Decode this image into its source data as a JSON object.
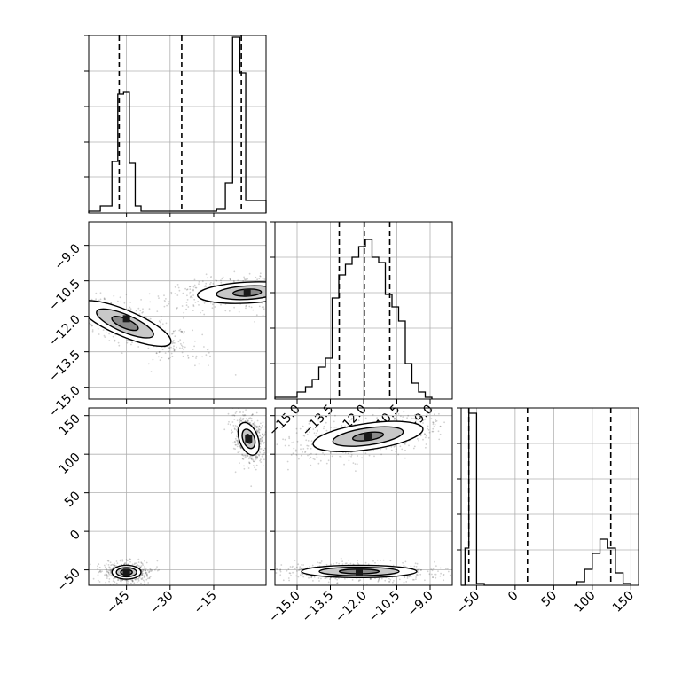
{
  "chart_data": {
    "type": "corner",
    "grid": true,
    "panels": [
      {
        "id": "hist-x",
        "type": "histogram",
        "variable": "x",
        "xlim": [
          -58,
          3
        ],
        "ylim": [
          0,
          1
        ],
        "bin_edges": [
          -58.0,
          -54.0,
          -50.0,
          -48.0,
          -46.0,
          -44.0,
          -42.0,
          -40.0,
          -14.0,
          -11.0,
          -8.5,
          -6.0,
          -4.0,
          -2.0,
          0.5,
          3.0
        ],
        "counts": [
          0.01,
          0.04,
          0.29,
          0.67,
          0.68,
          0.28,
          0.04,
          0.01,
          0.02,
          0.17,
          0.99,
          0.79,
          0.07,
          0.07,
          0.07
        ],
        "quantile_lines": [
          -47.5,
          -26.0,
          -5.5
        ]
      },
      {
        "id": "scatter-x-y",
        "type": "2d-density",
        "variables": [
          "x",
          "y"
        ],
        "xlim": [
          -58,
          3
        ],
        "ylim": [
          -15.5,
          -8.0
        ],
        "y_ticks": [
          -9.0,
          -10.5,
          -12.0,
          -13.5,
          -15.0
        ],
        "y_tick_labels": [
          "−9.0",
          "−10.5",
          "−12.0",
          "−13.5",
          "−15.0"
        ],
        "clusters": [
          {
            "center": [
              -45.5,
              -12.3
            ],
            "contour_levels": [
              [
                4.5,
                2.1,
                -67
              ],
              [
                3.0,
                1.3,
                -67
              ],
              [
                1.6,
                0.6,
                -67
              ]
            ],
            "peak": [
              -45.0,
              -12.1
            ]
          },
          {
            "center": [
              -3.5,
              -11.0
            ],
            "contour_levels": [
              [
                3.6,
                2.1,
                -93
              ],
              [
                2.3,
                1.3,
                -93
              ],
              [
                1.2,
                0.6,
                -93
              ]
            ],
            "peak": [
              -3.5,
              -11.0
            ]
          }
        ]
      },
      {
        "id": "hist-y",
        "type": "histogram",
        "variable": "y",
        "xlim": [
          -16,
          -8.0
        ],
        "ylim": [
          0,
          1
        ],
        "bin_edges": [
          -16.0,
          -15.0,
          -14.62,
          -14.32,
          -14.02,
          -13.72,
          -13.42,
          -13.12,
          -12.82,
          -12.52,
          -12.22,
          -11.92,
          -11.62,
          -11.32,
          -11.02,
          -10.72,
          -10.42,
          -10.12,
          -9.82,
          -9.52,
          -9.22,
          -8.92
        ],
        "counts": [
          0.01,
          0.04,
          0.07,
          0.11,
          0.18,
          0.23,
          0.57,
          0.7,
          0.76,
          0.8,
          0.86,
          0.9,
          0.8,
          0.77,
          0.59,
          0.52,
          0.44,
          0.2,
          0.09,
          0.04,
          0.01
        ],
        "quantile_lines": [
          -13.1,
          -11.97,
          -10.82
        ],
        "x_ticks": [
          -15.0,
          -13.5,
          -12.0,
          -10.5,
          -9.0
        ],
        "x_tick_labels": [
          "−15.0",
          "−13.5",
          "−12.0",
          "−10.5",
          "−9.0"
        ]
      },
      {
        "id": "scatter-x-z",
        "type": "2d-density",
        "variables": [
          "x",
          "z"
        ],
        "xlim": [
          -58,
          3
        ],
        "ylim": [
          -70,
          160
        ],
        "x_ticks": [
          -45,
          -30,
          -15
        ],
        "x_tick_labels": [
          "−45",
          "−30",
          "−15"
        ],
        "y_ticks": [
          150,
          100,
          50,
          0,
          -50
        ],
        "y_tick_labels": [
          "150",
          "100",
          "50",
          "0",
          "−50"
        ],
        "clusters": [
          {
            "center": [
              -45.0,
              -53.0
            ],
            "contour_levels": [
              [
                5.0,
                9.0,
                0
              ],
              [
                3.5,
                6.0,
                0
              ],
              [
                2.0,
                3.5,
                0
              ]
            ],
            "peak": [
              -45.0,
              -53.0
            ]
          },
          {
            "center": [
              -3.0,
              120.0
            ],
            "contour_levels": [
              [
                3.2,
                22.0,
                -20
              ],
              [
                2.0,
                13.0,
                -20
              ],
              [
                0.9,
                6.0,
                -20
              ]
            ],
            "peak": [
              -3.0,
              120.0
            ]
          }
        ]
      },
      {
        "id": "scatter-y-z",
        "type": "2d-density",
        "variables": [
          "y",
          "z"
        ],
        "xlim": [
          -16,
          -8.0
        ],
        "ylim": [
          -70,
          160
        ],
        "x_ticks": [
          -15.0,
          -13.5,
          -12.0,
          -10.5,
          -9.0
        ],
        "x_tick_labels": [
          "−15.0",
          "−13.5",
          "−12.0",
          "−10.5",
          "−9.0"
        ],
        "clusters": [
          {
            "center": [
              -11.8,
              123.0
            ],
            "contour_levels": [
              [
                2.5,
                17.0,
                -8
              ],
              [
                1.6,
                11.0,
                -8
              ],
              [
                0.7,
                5.0,
                -8
              ]
            ],
            "peak": [
              -11.8,
              123.0
            ]
          },
          {
            "center": [
              -12.2,
              -52.0
            ],
            "contour_levels": [
              [
                2.6,
                8.0,
                0
              ],
              [
                1.8,
                5.5,
                0
              ],
              [
                0.9,
                3.0,
                0
              ]
            ],
            "peak": [
              -12.2,
              -52.0
            ]
          }
        ]
      },
      {
        "id": "hist-z",
        "type": "histogram",
        "variable": "z",
        "xlim": [
          -70,
          160
        ],
        "ylim": [
          0,
          1
        ],
        "bin_edges": [
          -65.0,
          -60.0,
          -50.0,
          -40.0,
          80.0,
          90.0,
          100.0,
          110.0,
          120.0,
          130.0,
          140.0,
          150.0
        ],
        "counts": [
          0.21,
          0.97,
          0.01,
          0.0,
          0.02,
          0.09,
          0.18,
          0.26,
          0.21,
          0.07,
          0.01
        ],
        "quantile_lines": [
          -60.0,
          16.0,
          124.0
        ],
        "x_ticks": [
          -50,
          0,
          50,
          100,
          150
        ],
        "x_tick_labels": [
          "−50",
          "0",
          "50",
          "100",
          "150"
        ]
      }
    ]
  }
}
